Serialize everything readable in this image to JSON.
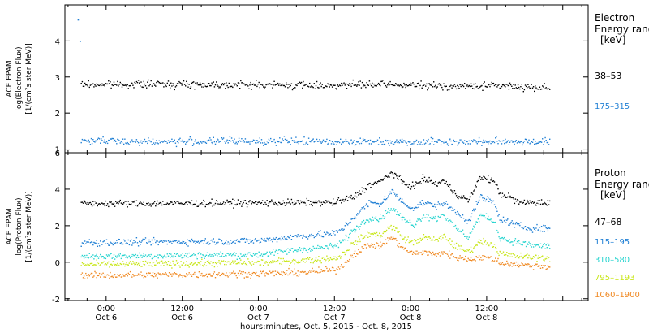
{
  "chart_data": [
    {
      "type": "scatter",
      "ylabel_lines": [
        "ACE EPAM",
        "log(Electron Flux)",
        "[1/(cm²s ster MeV)]"
      ],
      "ylim": [
        0.9,
        5.0
      ],
      "yticks": [
        1,
        2,
        3,
        4
      ],
      "legend_header": [
        "Electron",
        "Energy ranges",
        "[keV]"
      ],
      "series": [
        {
          "name": "38–53",
          "color": "#000000",
          "x": [
            -4,
            8,
            20,
            32,
            44,
            56,
            62,
            64,
            70
          ],
          "y": [
            2.8,
            2.82,
            2.8,
            2.78,
            2.8,
            2.75,
            2.78,
            2.75,
            2.72
          ]
        },
        {
          "name": "175–315",
          "color": "#1f7fd4",
          "x": [
            -4,
            8,
            20,
            32,
            44,
            56,
            62,
            64,
            70
          ],
          "y": [
            1.25,
            1.22,
            1.24,
            1.23,
            1.22,
            1.22,
            1.22,
            1.23,
            1.22
          ]
        }
      ]
    },
    {
      "type": "scatter",
      "ylabel_lines": [
        "ACE EPAM",
        "log(Proton Flux)",
        "[1/(cm²s ster MeV)]"
      ],
      "ylim": [
        -2.1,
        6.0
      ],
      "yticks": [
        -2,
        0,
        2,
        4,
        6
      ],
      "legend_header": [
        "Proton",
        "Energy ranges",
        "[keV]"
      ],
      "series": [
        {
          "name": "47–68",
          "color": "#000000",
          "x": [
            -4,
            12,
            24,
            36,
            37,
            39,
            41.5,
            43,
            45,
            47,
            48.5,
            50,
            52,
            53,
            55,
            57,
            59,
            61,
            62,
            63.5,
            65,
            67,
            70
          ],
          "y": [
            3.25,
            3.25,
            3.28,
            3.3,
            3.4,
            3.6,
            4.3,
            4.4,
            4.95,
            4.3,
            4.2,
            4.6,
            4.3,
            4.5,
            3.8,
            3.4,
            4.7,
            4.5,
            3.8,
            3.6,
            3.3,
            3.3,
            3.28
          ]
        },
        {
          "name": "115–195",
          "color": "#1f7fd4",
          "x": [
            -4,
            12,
            24,
            30,
            36,
            37,
            39,
            41.5,
            43,
            45,
            47,
            48.5,
            50,
            52,
            53,
            55,
            57,
            59,
            61,
            62,
            63.5,
            65,
            67,
            70
          ],
          "y": [
            1.1,
            1.15,
            1.2,
            1.45,
            1.6,
            1.8,
            2.5,
            3.3,
            3.2,
            3.9,
            3.2,
            3.0,
            3.3,
            3.1,
            3.3,
            2.8,
            2.3,
            3.6,
            3.3,
            2.4,
            2.2,
            2.0,
            1.9,
            1.85
          ]
        },
        {
          "name": "310–580",
          "color": "#27d4cf",
          "x": [
            -4,
            12,
            24,
            30,
            36,
            37,
            39,
            41.5,
            43,
            45,
            47,
            48.5,
            50,
            52,
            53,
            55,
            57,
            59,
            61,
            62,
            63.5,
            65,
            67,
            70
          ],
          "y": [
            0.35,
            0.4,
            0.45,
            0.7,
            0.9,
            1.1,
            1.8,
            2.5,
            2.4,
            3.0,
            2.3,
            2.1,
            2.6,
            2.4,
            2.7,
            1.9,
            1.4,
            2.6,
            2.3,
            1.4,
            1.2,
            1.1,
            0.95,
            0.9
          ]
        },
        {
          "name": "795–1193",
          "color": "#c8e619",
          "x": [
            -4,
            12,
            24,
            30,
            36,
            37,
            39,
            41.5,
            43,
            45,
            47,
            48.5,
            50,
            52,
            53,
            55,
            57,
            59,
            61,
            62,
            63.5,
            65,
            67,
            70
          ],
          "y": [
            -0.1,
            -0.05,
            0.0,
            0.1,
            0.25,
            0.4,
            1.1,
            1.6,
            1.5,
            2.0,
            1.3,
            1.1,
            1.4,
            1.2,
            1.5,
            0.9,
            0.6,
            1.2,
            1.0,
            0.5,
            0.4,
            0.35,
            0.3,
            0.25
          ]
        },
        {
          "name": "1060–1900",
          "color": "#f08a24",
          "x": [
            -4,
            12,
            24,
            30,
            36,
            37,
            39,
            41.5,
            43,
            45,
            47,
            48.5,
            50,
            52,
            53,
            55,
            57,
            59,
            61,
            62,
            63.5,
            65,
            67,
            70
          ],
          "y": [
            -0.7,
            -0.65,
            -0.6,
            -0.55,
            -0.4,
            -0.2,
            0.5,
            1.0,
            0.9,
            1.4,
            0.7,
            0.5,
            0.6,
            0.4,
            0.6,
            0.3,
            0.2,
            0.3,
            0.2,
            0.0,
            -0.05,
            -0.1,
            -0.15,
            -0.2
          ]
        }
      ]
    }
  ],
  "x_axis": {
    "xlim": [
      -6.5,
      76
    ],
    "ticks": [
      0,
      12,
      24,
      36,
      48,
      60,
      72
    ],
    "tick_labels": [
      [
        "0:00",
        "Oct 6"
      ],
      [
        "12:00",
        "Oct 6"
      ],
      [
        "0:00",
        "Oct 7"
      ],
      [
        "12:00",
        "Oct 7"
      ],
      [
        "0:00",
        "Oct 8"
      ],
      [
        "12:00",
        "Oct 8"
      ],
      [
        "",
        ""
      ]
    ],
    "title": "hours:minutes, Oct.  5, 2015 - Oct.  8, 2015"
  }
}
